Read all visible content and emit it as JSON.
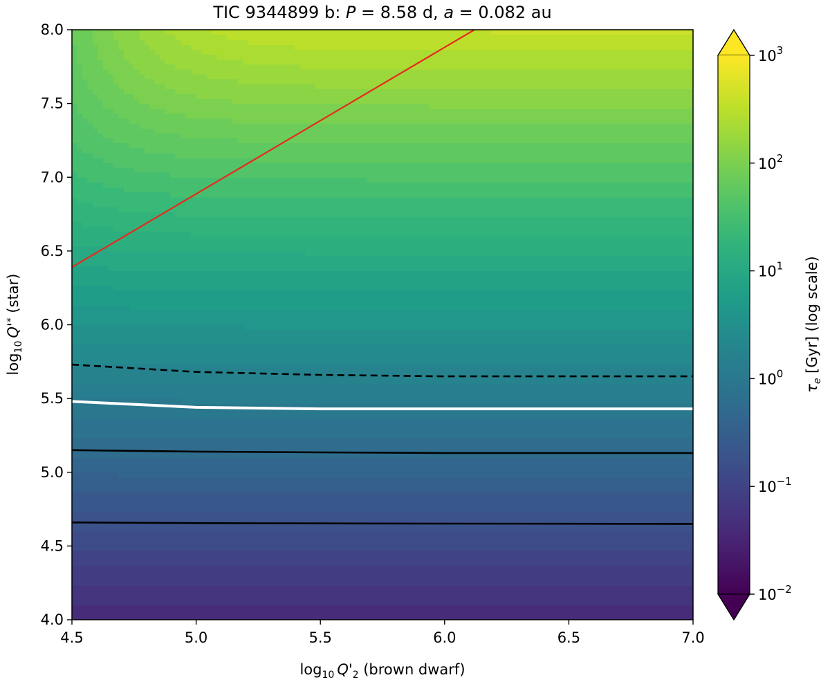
{
  "chart_data": {
    "type": "heatmap",
    "title": "TIC 9344899 b: P = 8.58 d, a = 0.082 au",
    "title_parts": {
      "prefix": "TIC 9344899 b: ",
      "p_symbol": "P",
      "p_value": " = 8.58 d, ",
      "a_symbol": "a",
      "a_value": " = 0.082 au"
    },
    "xlabel": "log10 Q'2 (brown dwarf)",
    "xlabel_parts": {
      "log": "log",
      "sub": "10",
      "q": "Q'",
      "q_sub": "2",
      "rest": " (brown dwarf)"
    },
    "ylabel": "log10 Q'* (star)",
    "ylabel_parts": {
      "log": "log",
      "sub": "10",
      "q": "Q'",
      "q_sub": "*",
      "rest": " (star)"
    },
    "xlim": [
      4.5,
      7.0
    ],
    "ylim": [
      4.0,
      8.0
    ],
    "xticks": [
      "4.5",
      "5.0",
      "5.5",
      "6.0",
      "6.5",
      "7.0"
    ],
    "yticks": [
      "4.0",
      "4.5",
      "5.0",
      "5.5",
      "6.0",
      "6.5",
      "7.0",
      "7.5",
      "8.0"
    ],
    "colorbar": {
      "label": "τe [Gyr] (log scale)",
      "label_parts": {
        "tau": "τ",
        "tau_sub": "e",
        "rest": " [Gyr] (log scale)"
      },
      "scale": "log",
      "range_log10": [
        -2,
        3
      ],
      "extend": "both",
      "ticks_exponents": [
        "-2",
        "-1",
        "0",
        "1",
        "2",
        "3"
      ],
      "tick_base": "10",
      "colormap": "viridis"
    },
    "contours": [
      {
        "style": "red-solid",
        "color": "#e8291c",
        "x": [
          4.5,
          6.12
        ],
        "y": [
          6.39,
          8.0
        ]
      },
      {
        "style": "black-dashed",
        "color": "#000000",
        "x": [
          4.5,
          5.0,
          5.5,
          6.0,
          6.5,
          7.0
        ],
        "y": [
          5.73,
          5.68,
          5.66,
          5.65,
          5.65,
          5.65
        ]
      },
      {
        "style": "white-solid",
        "color": "#ffffff",
        "x": [
          4.5,
          5.0,
          5.5,
          6.0,
          6.5,
          7.0
        ],
        "y": [
          5.48,
          5.44,
          5.43,
          5.43,
          5.43,
          5.43
        ]
      },
      {
        "style": "black-solid",
        "color": "#000000",
        "x": [
          4.5,
          5.0,
          5.5,
          6.0,
          6.5,
          7.0
        ],
        "y": [
          5.15,
          5.14,
          5.135,
          5.13,
          5.13,
          5.13
        ]
      },
      {
        "style": "black-solid",
        "color": "#000000",
        "x": [
          4.5,
          5.0,
          5.5,
          6.0,
          6.5,
          7.0
        ],
        "y": [
          4.66,
          4.655,
          4.653,
          4.652,
          4.651,
          4.65
        ]
      }
    ]
  }
}
